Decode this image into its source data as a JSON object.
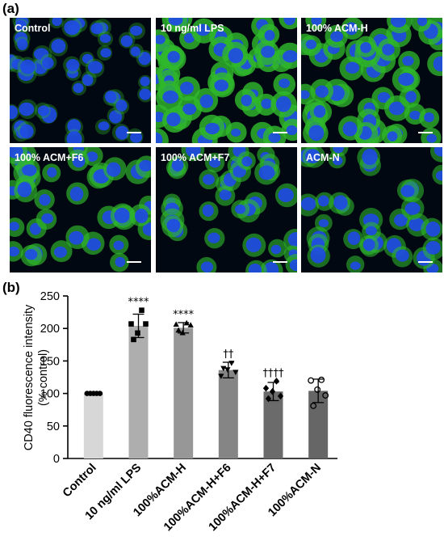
{
  "panel_a": {
    "letter": "(a)",
    "images": [
      {
        "label": "Control",
        "density": 1.0,
        "green": 0.15
      },
      {
        "label": "10 ng/ml LPS",
        "density": 1.15,
        "green": 0.95
      },
      {
        "label": "100% ACM-H",
        "density": 1.0,
        "green": 0.85
      },
      {
        "label": "100% ACM+F6",
        "density": 0.8,
        "green": 0.7
      },
      {
        "label": "100% ACM+F7",
        "density": 0.75,
        "green": 0.6
      },
      {
        "label": "ACM-N",
        "density": 0.7,
        "green": 0.55
      }
    ],
    "colors": {
      "nucleus": "#1f49e8",
      "cytoplasm": "#2fb82c",
      "background": "#020812"
    }
  },
  "panel_b": {
    "letter": "(b)"
  },
  "chart_data": {
    "type": "bar",
    "ylabel_line1": "CD40 fluorescence intensity",
    "ylabel_line2": "(% control)",
    "ylim": [
      0,
      250
    ],
    "yticks": [
      0,
      50,
      100,
      150,
      200,
      250
    ],
    "categories": [
      "Control",
      "10 ng/ml LPS",
      "100%ACM-H",
      "100%ACM-H+F6",
      "100%ACM-H+F7",
      "100%ACM-N"
    ],
    "values": [
      100,
      204,
      201,
      136,
      103,
      104
    ],
    "errors": [
      0.5,
      18,
      8,
      12,
      14,
      18
    ],
    "bar_colors": [
      "#d7d7d7",
      "#aeaeae",
      "#979797",
      "#858585",
      "#6b6b6b",
      "#666666"
    ],
    "annotations": [
      "",
      "****",
      "****",
      "††",
      "††††",
      ""
    ],
    "markers": [
      "circle",
      "square",
      "triangle-up",
      "triangle-down",
      "diamond",
      "circle-open"
    ],
    "points": [
      [
        100,
        100,
        100,
        100,
        100
      ],
      [
        228,
        207,
        193,
        207,
        183
      ],
      [
        208,
        206,
        193,
        205,
        197
      ],
      [
        147,
        127,
        137,
        133,
        139
      ],
      [
        119,
        108,
        103,
        96,
        92
      ],
      [
        121,
        120,
        106,
        97,
        81
      ]
    ]
  }
}
